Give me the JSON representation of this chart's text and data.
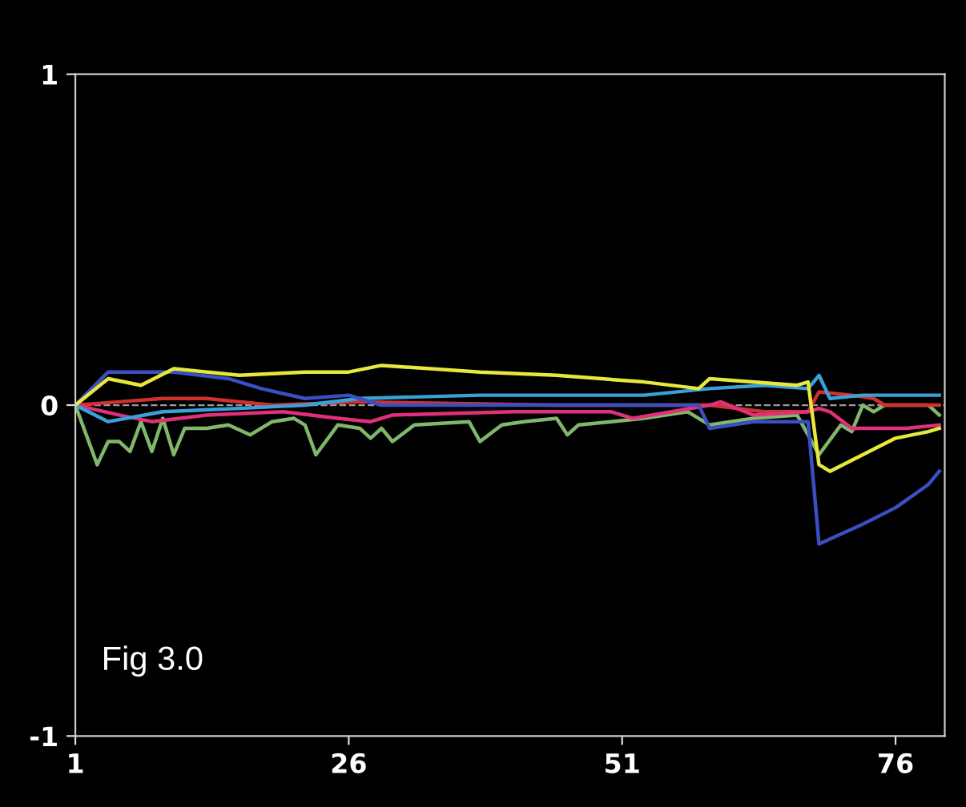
{
  "chart_data": {
    "type": "line",
    "xlim": [
      1,
      80.5
    ],
    "ylim": [
      -1,
      1
    ],
    "xticks": [
      1,
      26,
      51,
      76
    ],
    "yticks": [
      -1,
      0,
      1
    ],
    "grid": false,
    "legend": false,
    "marker": "none",
    "line_style": "solid",
    "ref_lines": [
      {
        "axis": "y",
        "value": 0,
        "color": "#9a9a9a",
        "line_style": "dashed"
      }
    ],
    "annotations": [
      "Fig 3.0"
    ],
    "series": [
      {
        "color": "#7fb86a",
        "x": [
          1,
          3,
          4,
          5,
          6,
          7,
          8,
          9,
          10,
          11,
          13,
          15,
          17,
          19,
          21,
          22,
          23,
          25,
          27,
          28,
          29,
          30,
          32,
          37,
          38,
          40,
          42,
          45,
          46,
          47,
          50,
          53,
          57,
          59,
          63,
          67,
          69,
          71,
          72,
          73,
          74,
          75,
          79,
          80
        ],
        "values": [
          0,
          -0.18,
          -0.11,
          -0.11,
          -0.14,
          -0.05,
          -0.14,
          -0.04,
          -0.15,
          -0.07,
          -0.07,
          -0.06,
          -0.09,
          -0.05,
          -0.04,
          -0.06,
          -0.15,
          -0.06,
          -0.07,
          -0.1,
          -0.07,
          -0.11,
          -0.06,
          -0.05,
          -0.11,
          -0.06,
          -0.05,
          -0.04,
          -0.09,
          -0.06,
          -0.05,
          -0.04,
          -0.02,
          -0.06,
          -0.04,
          -0.03,
          -0.15,
          -0.06,
          -0.08,
          0,
          -0.02,
          0,
          0,
          -0.03
        ]
      },
      {
        "color": "#d03030",
        "x": [
          1,
          5,
          9,
          13,
          19,
          27,
          45,
          59,
          64,
          68,
          69,
          72,
          74,
          75,
          80
        ],
        "values": [
          0,
          0.01,
          0.02,
          0.02,
          0,
          0.01,
          0,
          0,
          -0.02,
          -0.02,
          0.04,
          0.03,
          0.02,
          0,
          0
        ]
      },
      {
        "color": "#e0307a",
        "x": [
          1,
          5,
          8,
          13,
          20,
          25,
          28,
          30,
          41,
          50,
          52,
          59,
          60,
          63,
          68,
          69,
          70,
          72,
          74,
          77,
          80
        ],
        "values": [
          0,
          -0.03,
          -0.05,
          -0.03,
          -0.02,
          -0.04,
          -0.05,
          -0.03,
          -0.02,
          -0.02,
          -0.04,
          0,
          0.01,
          -0.03,
          -0.02,
          -0.01,
          -0.02,
          -0.07,
          -0.07,
          -0.07,
          -0.06
        ]
      },
      {
        "color": "#3aa0d8",
        "x": [
          1,
          4,
          9,
          16,
          22,
          27,
          38,
          53,
          59,
          64,
          68,
          69,
          70,
          73,
          76,
          80
        ],
        "values": [
          0,
          -0.05,
          -0.02,
          -0.01,
          0,
          0.02,
          0.03,
          0.03,
          0.05,
          0.06,
          0.05,
          0.09,
          0.02,
          0.03,
          0.03,
          0.03
        ]
      },
      {
        "color": "#3a4fc0",
        "x": [
          1,
          4,
          10,
          15,
          18,
          22,
          26,
          29,
          38,
          58,
          59,
          63,
          68,
          69,
          73,
          76,
          79,
          80
        ],
        "values": [
          0,
          0.1,
          0.1,
          0.08,
          0.05,
          0.02,
          0.03,
          0,
          0,
          0,
          -0.07,
          -0.05,
          -0.05,
          -0.42,
          -0.36,
          -0.31,
          -0.24,
          -0.2
        ]
      },
      {
        "color": "#e8e83c",
        "x": [
          1,
          4,
          7,
          10,
          16,
          22,
          26,
          29,
          38,
          45,
          53,
          58,
          59,
          67,
          68,
          69,
          70,
          73,
          76,
          79,
          80
        ],
        "values": [
          0,
          0.08,
          0.06,
          0.11,
          0.09,
          0.1,
          0.1,
          0.12,
          0.1,
          0.09,
          0.07,
          0.05,
          0.08,
          0.06,
          0.07,
          -0.18,
          -0.2,
          -0.15,
          -0.1,
          -0.08,
          -0.07
        ]
      }
    ]
  }
}
